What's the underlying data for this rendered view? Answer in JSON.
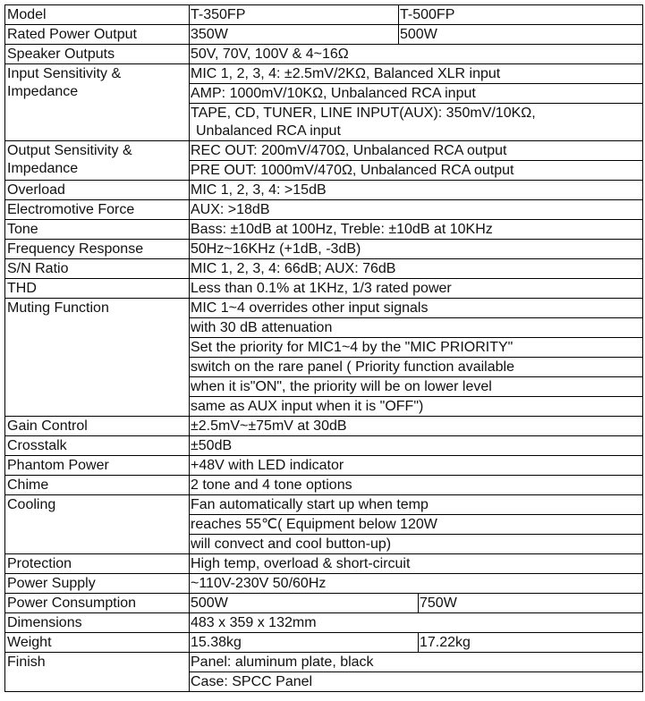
{
  "rows": [
    {
      "label": "Model",
      "values": [
        [
          "T-350FP",
          "T-500FP"
        ]
      ]
    },
    {
      "label": "Rated Power Output",
      "values": [
        [
          "350W",
          "500W"
        ]
      ]
    },
    {
      "label": "Speaker Outputs",
      "values": [
        [
          "50V, 70V, 100V & 4~16Ω"
        ]
      ]
    },
    {
      "label": "Input Sensitivity & Impedance",
      "values": [
        [
          "MIC 1, 2, 3, 4: ±2.5mV/2KΩ, Balanced XLR input"
        ],
        [
          "AMP: 1000mV/10KΩ, Unbalanced RCA input"
        ],
        [
          "TAPE, CD, TUNER, LINE INPUT(AUX): 350mV/10KΩ,",
          "Unbalanced RCA input"
        ]
      ]
    },
    {
      "label": "Output Sensitivity & Impedance",
      "values": [
        [
          "REC OUT: 200mV/470Ω, Unbalanced RCA output"
        ],
        [
          "PRE OUT: 1000mV/470Ω, Unbalanced RCA output"
        ]
      ]
    },
    {
      "label": "Overload",
      "values": [
        [
          "MIC 1, 2, 3, 4: >15dB"
        ]
      ]
    },
    {
      "label": "Electromotive Force",
      "values": [
        [
          "AUX: >18dB"
        ]
      ]
    },
    {
      "label": "Tone",
      "values": [
        [
          "Bass: ±10dB at 100Hz, Treble: ±10dB at 10KHz"
        ]
      ]
    },
    {
      "label": "Frequency Response",
      "values": [
        [
          "50Hz~16KHz (+1dB, -3dB)"
        ]
      ]
    },
    {
      "label": "S/N Ratio",
      "values": [
        [
          "MIC 1, 2, 3, 4: 66dB; AUX: 76dB"
        ]
      ]
    },
    {
      "label": "THD",
      "values": [
        [
          "Less than 0.1% at 1KHz, 1/3 rated power"
        ]
      ]
    },
    {
      "label": "Muting Function",
      "values": [
        [
          "MIC 1~4 overrides other input signals"
        ],
        [
          "with 30 dB attenuation"
        ],
        [
          "Set the priority for MIC1~4 by the \"MIC PRIORITY\""
        ],
        [
          "switch on the rare panel ( Priority function available"
        ],
        [
          "when it is\"ON\", the priority will be on lower level"
        ],
        [
          "same as AUX input when it is \"OFF\")"
        ]
      ]
    },
    {
      "label": "Gain Control",
      "values": [
        [
          "±2.5mV~±75mV at 30dB"
        ]
      ]
    },
    {
      "label": "Crosstalk",
      "values": [
        [
          "±50dB"
        ]
      ]
    },
    {
      "label": "Phantom Power",
      "values": [
        [
          "+48V with LED indicator"
        ]
      ]
    },
    {
      "label": "Chime",
      "values": [
        [
          "2 tone and 4 tone options"
        ]
      ]
    },
    {
      "label": "Cooling",
      "values": [
        [
          "Fan automatically start up when temp"
        ],
        [
          "reaches 55℃( Equipment below 120W"
        ],
        [
          "will convect and cool button-up)"
        ]
      ]
    },
    {
      "label": "Protection",
      "values": [
        [
          "High temp, overload & short-circuit"
        ]
      ]
    },
    {
      "label": "Power Supply",
      "values": [
        [
          "~110V-230V  50/60Hz"
        ]
      ]
    },
    {
      "label": "Power Consumption",
      "values": [
        [
          "500W",
          "750W"
        ]
      ]
    },
    {
      "label": "Dimensions",
      "values": [
        [
          "483 x 359 x 132mm"
        ]
      ]
    },
    {
      "label": "Weight",
      "values": [
        [
          "15.38kg",
          "17.22kg"
        ]
      ]
    },
    {
      "label": "Finish",
      "values": [
        [
          "Panel: aluminum plate, black"
        ],
        [
          "Case: SPCC Panel"
        ]
      ]
    }
  ]
}
